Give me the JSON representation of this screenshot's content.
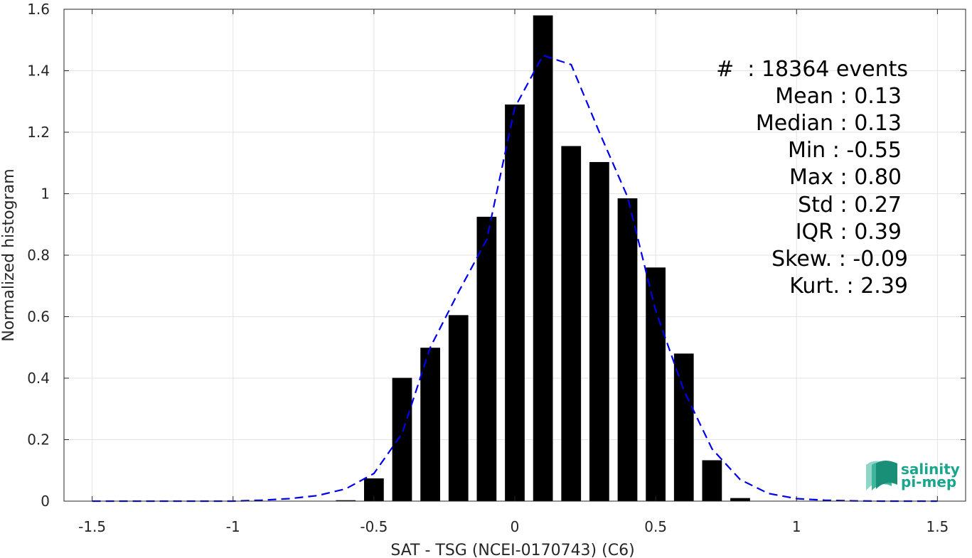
{
  "chart_data": {
    "type": "bar",
    "xlabel": "SAT - TSG (NCEI-0170743) (C6)",
    "ylabel": "Normalized histogram",
    "xlim": [
      -1.6,
      1.6
    ],
    "ylim": [
      0,
      1.6
    ],
    "xticks": [
      -1.5,
      -1,
      -0.5,
      0,
      0.5,
      1,
      1.5
    ],
    "xtick_labels": [
      "-1.5",
      "-1",
      "-0.5",
      "0",
      "0.5",
      "1",
      "1.5"
    ],
    "yticks": [
      0,
      0.2,
      0.4,
      0.6,
      0.8,
      1,
      1.2,
      1.4,
      1.6
    ],
    "ytick_labels": [
      "0",
      "0.2",
      "0.4",
      "0.6",
      "0.8",
      "1",
      "1.2",
      "1.4",
      "1.6"
    ],
    "grid": true,
    "bar_width": 0.07,
    "bars": {
      "x": [
        -0.6,
        -0.5,
        -0.4,
        -0.3,
        -0.2,
        -0.1,
        0.0,
        0.1,
        0.2,
        0.3,
        0.4,
        0.5,
        0.6,
        0.7,
        0.8
      ],
      "values": [
        0.003,
        0.074,
        0.401,
        0.499,
        0.605,
        0.925,
        1.29,
        1.58,
        1.155,
        1.103,
        0.985,
        0.76,
        0.48,
        0.133,
        0.01
      ],
      "color": "#000000"
    },
    "fit_curve": {
      "style": "dashed",
      "color": "#0000ee",
      "x": [
        -1.5,
        -1.4,
        -1.3,
        -1.2,
        -1.1,
        -1.0,
        -0.9,
        -0.8,
        -0.7,
        -0.6,
        -0.5,
        -0.4,
        -0.3,
        -0.2,
        -0.1,
        0.0,
        0.1,
        0.2,
        0.3,
        0.4,
        0.5,
        0.6,
        0.7,
        0.8,
        0.9,
        1.0,
        1.1,
        1.2,
        1.3,
        1.4,
        1.5
      ],
      "y": [
        0.0,
        0.0,
        0.0,
        0.0,
        0.0,
        0.0,
        0.003,
        0.008,
        0.018,
        0.04,
        0.09,
        0.22,
        0.5,
        0.68,
        0.85,
        1.28,
        1.45,
        1.42,
        1.2,
        0.99,
        0.62,
        0.36,
        0.17,
        0.07,
        0.025,
        0.008,
        0.003,
        0.001,
        0.0,
        0.0,
        0.0
      ]
    },
    "stats": {
      "lines": [
        "#  : 18364 events",
        "Mean : 0.13",
        "Median : 0.13",
        "Min : -0.55",
        "Max : 0.80",
        "Std : 0.27",
        "IQR : 0.39",
        "Skew. : -0.09",
        "Kurt. : 2.39"
      ]
    }
  },
  "logo": {
    "line1": "salinity",
    "line2": "pi-mep",
    "color": "#1aa58c"
  }
}
